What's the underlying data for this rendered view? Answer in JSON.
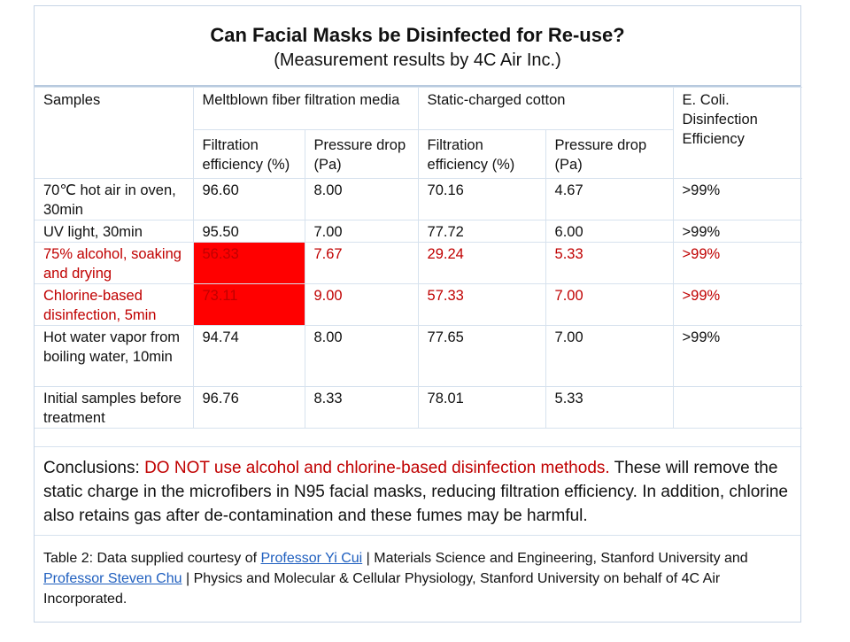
{
  "title": "Can Facial Masks be Disinfected for Re-use?",
  "subtitle": "(Measurement results by 4C Air Inc.)",
  "table": {
    "header": {
      "samples": "Samples",
      "group1": "Meltblown fiber filtration media",
      "group2": "Static-charged cotton",
      "ecoli": "E. Coli. Disinfection Efficiency",
      "filtration": "Filtration efficiency (%)",
      "pressure": "Pressure drop (Pa)"
    },
    "rows": [
      {
        "sample": "70℃ hot air in oven, 30min",
        "mb_filt": "96.60",
        "mb_pd": "8.00",
        "sc_filt": "70.16",
        "sc_pd": "4.67",
        "ecoli": ">99%"
      },
      {
        "sample": "UV light, 30min",
        "mb_filt": "95.50",
        "mb_pd": "7.00",
        "sc_filt": "77.72",
        "sc_pd": "6.00",
        "ecoli": ">99%"
      },
      {
        "sample": "75% alcohol, soaking and drying",
        "mb_filt": "56.33",
        "mb_pd": "7.67",
        "sc_filt": "29.24",
        "sc_pd": "5.33",
        "ecoli": ">99%"
      },
      {
        "sample": "Chlorine-based disinfection, 5min",
        "mb_filt": "73.11",
        "mb_pd": "9.00",
        "sc_filt": "57.33",
        "sc_pd": "7.00",
        "ecoli": ">99%"
      },
      {
        "sample": "Hot water vapor from boiling water, 10min",
        "mb_filt": "94.74",
        "mb_pd": "8.00",
        "sc_filt": "77.65",
        "sc_pd": "7.00",
        "ecoli": ">99%"
      },
      {
        "sample": "Initial samples before treatment",
        "mb_filt": "96.76",
        "mb_pd": "8.33",
        "sc_filt": "78.01",
        "sc_pd": "5.33",
        "ecoli": ""
      }
    ]
  },
  "conclusion": {
    "lead": "Conclusions: ",
    "warning": "DO NOT use alcohol and chlorine-based disinfection methods.",
    "body": " These will remove the static charge in the microfibers in N95 facial masks, reducing filtration efficiency. In addition, chlorine also retains gas after de-contamination and these fumes may be harmful."
  },
  "footnote": {
    "part1": "Table 2:  Data supplied courtesy of ",
    "link1": "Professor Yi Cui",
    "part2": " | Materials Science and Engineering, Stanford University and ",
    "link2": "Professor Steven Chu",
    "part3": " | Physics and Molecular & Cellular Physiology, Stanford University on behalf of 4C Air Incorporated."
  },
  "colors": {
    "warning_red": "#c00000",
    "highlight_fill": "#ff0000",
    "link_blue": "#1f5fbf",
    "border": "#d7e2ee"
  }
}
